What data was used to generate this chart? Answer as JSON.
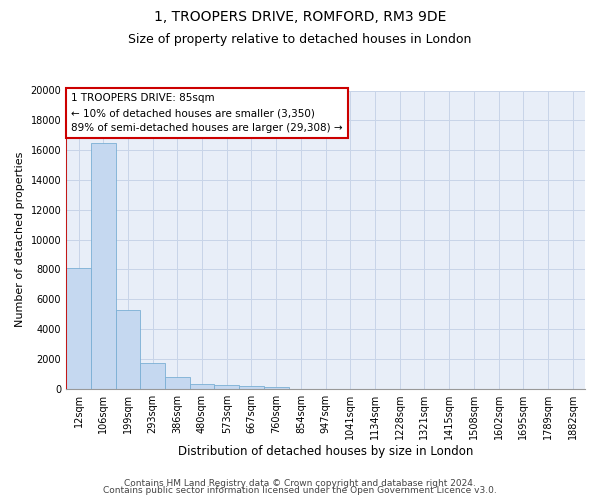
{
  "title": "1, TROOPERS DRIVE, ROMFORD, RM3 9DE",
  "subtitle": "Size of property relative to detached houses in London",
  "xlabel": "Distribution of detached houses by size in London",
  "ylabel": "Number of detached properties",
  "categories": [
    "12sqm",
    "106sqm",
    "199sqm",
    "293sqm",
    "386sqm",
    "480sqm",
    "573sqm",
    "667sqm",
    "760sqm",
    "854sqm",
    "947sqm",
    "1041sqm",
    "1134sqm",
    "1228sqm",
    "1321sqm",
    "1415sqm",
    "1508sqm",
    "1602sqm",
    "1695sqm",
    "1789sqm",
    "1882sqm"
  ],
  "values": [
    8100,
    16500,
    5300,
    1750,
    750,
    330,
    210,
    180,
    130,
    0,
    0,
    0,
    0,
    0,
    0,
    0,
    0,
    0,
    0,
    0,
    0
  ],
  "bar_color": "#c5d8f0",
  "bar_edge_color": "#7aafd4",
  "grid_color": "#c8d4e8",
  "bg_color": "#e8eef8",
  "marker_line_color": "#cc0000",
  "annotation_text": "1 TROOPERS DRIVE: 85sqm\n← 10% of detached houses are smaller (3,350)\n89% of semi-detached houses are larger (29,308) →",
  "annotation_box_color": "#ffffff",
  "annotation_box_edge": "#cc0000",
  "ylim": [
    0,
    20000
  ],
  "yticks": [
    0,
    2000,
    4000,
    6000,
    8000,
    10000,
    12000,
    14000,
    16000,
    18000,
    20000
  ],
  "footer1": "Contains HM Land Registry data © Crown copyright and database right 2024.",
  "footer2": "Contains public sector information licensed under the Open Government Licence v3.0.",
  "title_fontsize": 10,
  "subtitle_fontsize": 9,
  "annot_fontsize": 7.5,
  "tick_fontsize": 7,
  "ylabel_fontsize": 8,
  "xlabel_fontsize": 8.5,
  "footer_fontsize": 6.5
}
